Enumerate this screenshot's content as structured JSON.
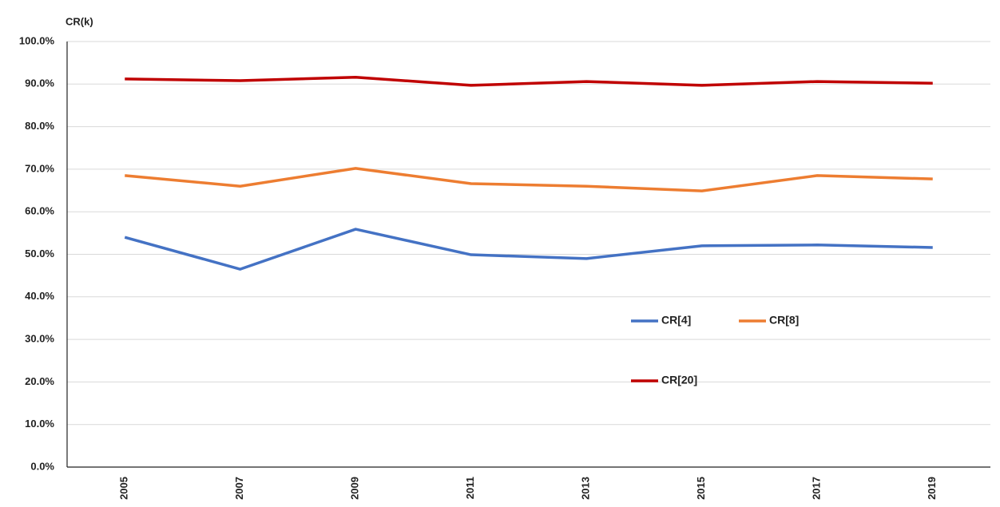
{
  "chart_data": {
    "type": "line",
    "y_axis_label": "CR(k)",
    "categories": [
      "2005",
      "2007",
      "2009",
      "2011",
      "2013",
      "2015",
      "2017",
      "2019"
    ],
    "series": [
      {
        "name": "CR[4]",
        "color": "#4472c4",
        "values": [
          54.0,
          46.5,
          55.9,
          49.9,
          49.0,
          52.0,
          52.2,
          51.6
        ]
      },
      {
        "name": "CR[8]",
        "color": "#ed7d31",
        "values": [
          68.5,
          66.0,
          70.2,
          66.6,
          66.0,
          64.9,
          68.5,
          67.7
        ]
      },
      {
        "name": "CR[20]",
        "color": "#c00000",
        "values": [
          91.2,
          90.8,
          91.6,
          89.7,
          90.6,
          89.7,
          90.6,
          90.2
        ]
      }
    ],
    "ylim": [
      0,
      100
    ],
    "yticks": [
      {
        "value": 0,
        "label": "0.0%"
      },
      {
        "value": 10,
        "label": "10.0%"
      },
      {
        "value": 20,
        "label": "20.0%"
      },
      {
        "value": 30,
        "label": "30.0%"
      },
      {
        "value": 40,
        "label": "40.0%"
      },
      {
        "value": 50,
        "label": "50.0%"
      },
      {
        "value": 60,
        "label": "60.0%"
      },
      {
        "value": 70,
        "label": "70.0%"
      },
      {
        "value": 80,
        "label": "80.0%"
      },
      {
        "value": 90,
        "label": "90.0%"
      },
      {
        "value": 100,
        "label": "100.0%"
      }
    ],
    "grid": true,
    "legend": "center-right"
  }
}
